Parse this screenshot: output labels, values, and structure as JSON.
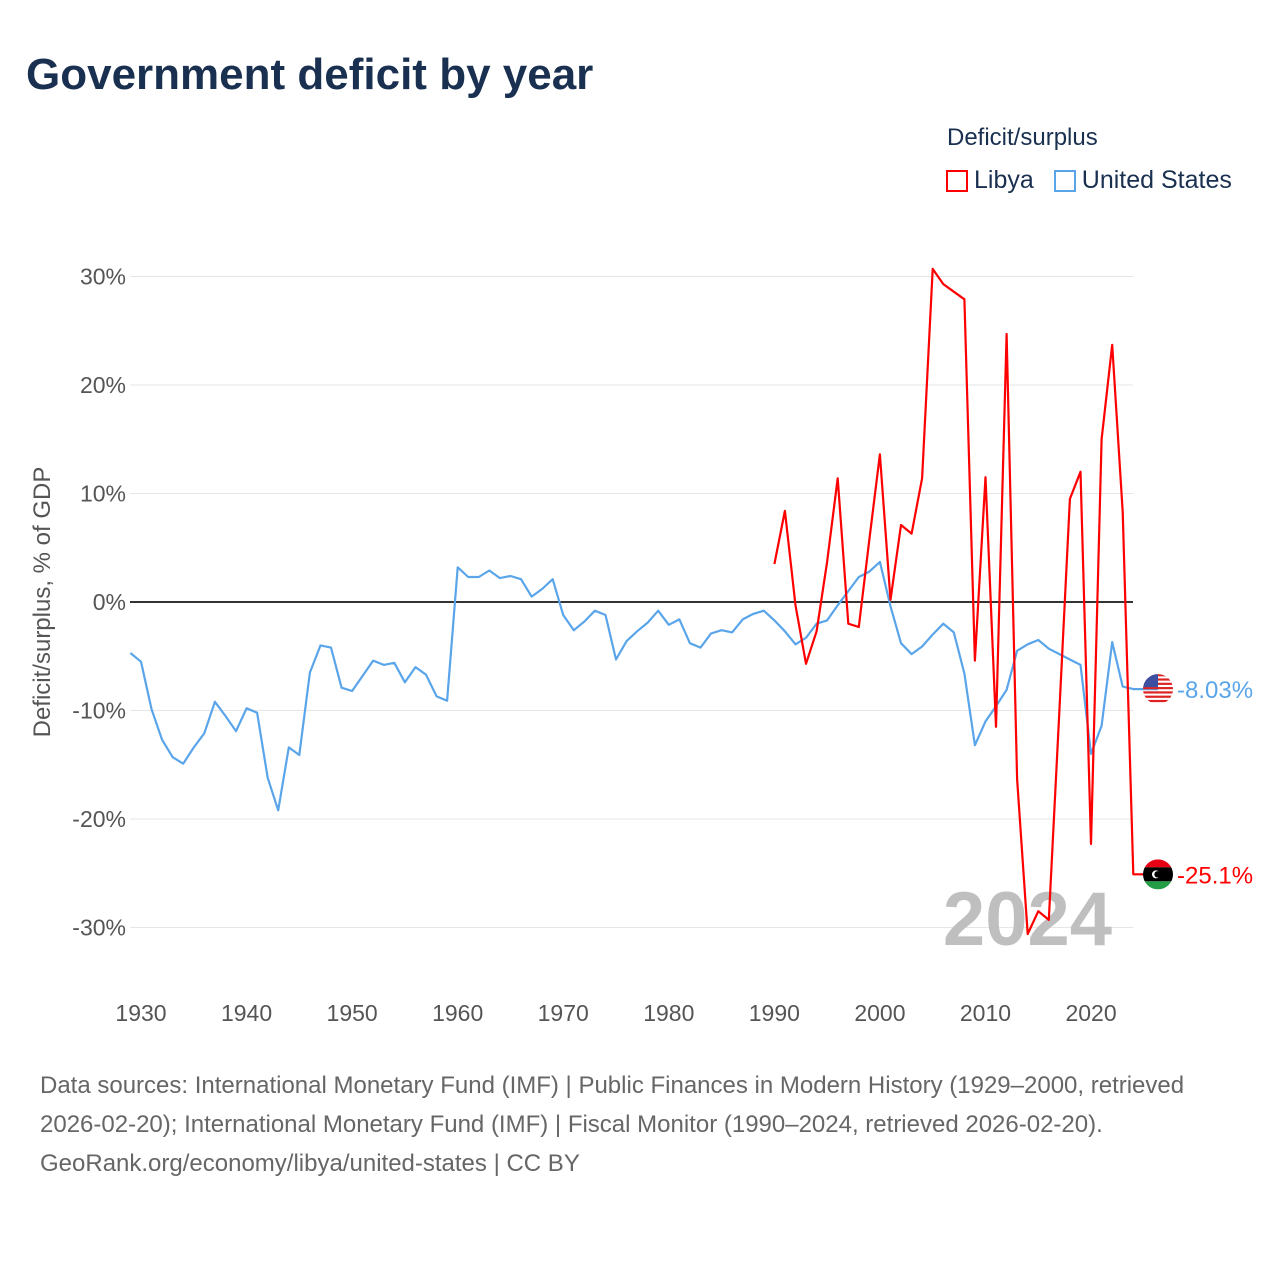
{
  "title": "Government deficit by year",
  "legend": {
    "title": "Deficit/surplus",
    "items": [
      {
        "label": "Libya",
        "color": "#ff0000"
      },
      {
        "label": "United States",
        "color": "#5aa5ea"
      }
    ]
  },
  "chart_data": {
    "type": "line",
    "title": "Government deficit by year",
    "xlabel": "",
    "ylabel": "Deficit/surplus, % of GDP",
    "xlim": [
      1929,
      2024
    ],
    "ylim": [
      -35,
      32
    ],
    "yticks": [
      30,
      20,
      10,
      0,
      -10,
      -20,
      -30
    ],
    "ytick_labels": [
      "30%",
      "20%",
      "10%",
      "0%",
      "-10%",
      "-20%",
      "-30%"
    ],
    "xticks": [
      1930,
      1940,
      1950,
      1960,
      1970,
      1980,
      1990,
      2000,
      2010,
      2020
    ],
    "xtick_labels": [
      "1930",
      "1940",
      "1950",
      "1960",
      "1970",
      "1980",
      "1990",
      "2000",
      "2010",
      "2020"
    ],
    "grid": true,
    "legend_position": "top-right",
    "year_watermark": "2024",
    "series": [
      {
        "name": "United States",
        "color": "#5aa5ea",
        "end_label": "-8.03%",
        "start_year": 1929,
        "values": [
          -4.7,
          -5.5,
          -9.9,
          -12.7,
          -14.3,
          -14.9,
          -13.4,
          -12.1,
          -9.2,
          -10.5,
          -11.9,
          -9.8,
          -10.2,
          -16.2,
          -19.2,
          -13.4,
          -14.1,
          -6.5,
          -4.0,
          -4.2,
          -7.9,
          -8.2,
          -6.8,
          -5.4,
          -5.8,
          -5.6,
          -7.4,
          -6.0,
          -6.7,
          -8.7,
          -9.1,
          3.2,
          2.3,
          2.3,
          2.9,
          2.2,
          2.4,
          2.1,
          0.5,
          1.2,
          2.1,
          -1.2,
          -2.6,
          -1.8,
          -0.8,
          -1.2,
          -5.3,
          -3.6,
          -2.7,
          -1.9,
          -0.8,
          -2.1,
          -1.6,
          -3.8,
          -4.2,
          -2.9,
          -2.6,
          -2.8,
          -1.6,
          -1.1,
          -0.8,
          -1.7,
          -2.7,
          -3.9,
          -3.3,
          -2.0,
          -1.7,
          -0.3,
          1.0,
          2.3,
          2.8,
          3.7,
          -0.4,
          -3.8,
          -4.8,
          -4.1,
          -3.0,
          -2.0,
          -2.8,
          -6.6,
          -13.2,
          -11.0,
          -9.6,
          -8.1,
          -4.5,
          -3.9,
          -3.5,
          -4.3,
          -4.8,
          -5.3,
          -5.8,
          -14.0,
          -11.4,
          -3.7,
          -7.8,
          -8.03
        ]
      },
      {
        "name": "Libya",
        "color": "#ff0000",
        "end_label": "-25.1%",
        "start_year": 1990,
        "values": [
          3.5,
          8.4,
          -0.3,
          -5.7,
          -2.7,
          3.7,
          11.4,
          -2.0,
          -2.3,
          5.8,
          13.6,
          0.2,
          7.1,
          6.3,
          11.4,
          30.7,
          29.3,
          28.6,
          27.9,
          -5.4,
          11.5,
          -11.5,
          24.7,
          -16.3,
          -30.6,
          -28.5,
          -29.3,
          -10.0,
          9.5,
          12.0,
          -22.3,
          15.0,
          23.7,
          8.3,
          -25.1
        ]
      }
    ]
  },
  "footer": {
    "sources": "Data sources: International Monetary Fund (IMF) | Public Finances in Modern History (1929–2000, retrieved 2026-02-20); International Monetary Fund (IMF) | Fiscal Monitor (1990–2024, retrieved 2026-02-20).",
    "credit": "GeoRank.org/economy/libya/united-states | CC BY"
  }
}
